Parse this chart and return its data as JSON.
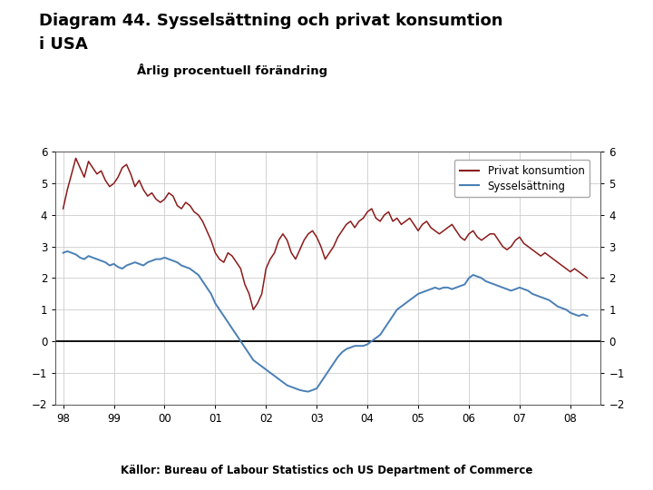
{
  "title_line1": "Diagram 44. Sysselsättning och privat konsumtion",
  "title_line2": "i USA",
  "subtitle": "Årlig procentuell förändring",
  "footer_bar_color": "#1c3f7a",
  "footer_text": "Källor: Bureau of Labour Statistics och US Department of Commerce",
  "legend_labels": [
    "Privat konsumtion",
    "Sysselsättning"
  ],
  "privat_color": "#8b1a1a",
  "syssel_color": "#4a7fb5",
  "background_color": "#ffffff",
  "ylim": [
    -2,
    6
  ],
  "yticks": [
    -2,
    -1,
    0,
    1,
    2,
    3,
    4,
    5,
    6
  ],
  "xtick_labels": [
    "98",
    "99",
    "00",
    "01",
    "02",
    "03",
    "04",
    "05",
    "06",
    "07",
    "08"
  ],
  "privat_x": [
    1998.0,
    1998.083,
    1998.167,
    1998.25,
    1998.333,
    1998.417,
    1998.5,
    1998.583,
    1998.667,
    1998.75,
    1998.833,
    1998.917,
    1999.0,
    1999.083,
    1999.167,
    1999.25,
    1999.333,
    1999.417,
    1999.5,
    1999.583,
    1999.667,
    1999.75,
    1999.833,
    1999.917,
    2000.0,
    2000.083,
    2000.167,
    2000.25,
    2000.333,
    2000.417,
    2000.5,
    2000.583,
    2000.667,
    2000.75,
    2000.833,
    2000.917,
    2001.0,
    2001.083,
    2001.167,
    2001.25,
    2001.333,
    2001.417,
    2001.5,
    2001.583,
    2001.667,
    2001.75,
    2001.833,
    2001.917,
    2002.0,
    2002.083,
    2002.167,
    2002.25,
    2002.333,
    2002.417,
    2002.5,
    2002.583,
    2002.667,
    2002.75,
    2002.833,
    2002.917,
    2003.0,
    2003.083,
    2003.167,
    2003.25,
    2003.333,
    2003.417,
    2003.5,
    2003.583,
    2003.667,
    2003.75,
    2003.833,
    2003.917,
    2004.0,
    2004.083,
    2004.167,
    2004.25,
    2004.333,
    2004.417,
    2004.5,
    2004.583,
    2004.667,
    2004.75,
    2004.833,
    2004.917,
    2005.0,
    2005.083,
    2005.167,
    2005.25,
    2005.333,
    2005.417,
    2005.5,
    2005.583,
    2005.667,
    2005.75,
    2005.833,
    2005.917,
    2006.0,
    2006.083,
    2006.167,
    2006.25,
    2006.333,
    2006.417,
    2006.5,
    2006.583,
    2006.667,
    2006.75,
    2006.833,
    2006.917,
    2007.0,
    2007.083,
    2007.167,
    2007.25,
    2007.333,
    2007.417,
    2007.5,
    2007.583,
    2007.667,
    2007.75,
    2007.833,
    2007.917,
    2008.0,
    2008.083,
    2008.167,
    2008.25,
    2008.333
  ],
  "privat_y": [
    4.2,
    4.8,
    5.3,
    5.8,
    5.5,
    5.2,
    5.7,
    5.5,
    5.3,
    5.4,
    5.1,
    4.9,
    5.0,
    5.2,
    5.5,
    5.6,
    5.3,
    4.9,
    5.1,
    4.8,
    4.6,
    4.7,
    4.5,
    4.4,
    4.5,
    4.7,
    4.6,
    4.3,
    4.2,
    4.4,
    4.3,
    4.1,
    4.0,
    3.8,
    3.5,
    3.2,
    2.8,
    2.6,
    2.5,
    2.8,
    2.7,
    2.5,
    2.3,
    1.8,
    1.5,
    1.0,
    1.2,
    1.5,
    2.3,
    2.6,
    2.8,
    3.2,
    3.4,
    3.2,
    2.8,
    2.6,
    2.9,
    3.2,
    3.4,
    3.5,
    3.3,
    3.0,
    2.6,
    2.8,
    3.0,
    3.3,
    3.5,
    3.7,
    3.8,
    3.6,
    3.8,
    3.9,
    4.1,
    4.2,
    3.9,
    3.8,
    4.0,
    4.1,
    3.8,
    3.9,
    3.7,
    3.8,
    3.9,
    3.7,
    3.5,
    3.7,
    3.8,
    3.6,
    3.5,
    3.4,
    3.5,
    3.6,
    3.7,
    3.5,
    3.3,
    3.2,
    3.4,
    3.5,
    3.3,
    3.2,
    3.3,
    3.4,
    3.4,
    3.2,
    3.0,
    2.9,
    3.0,
    3.2,
    3.3,
    3.1,
    3.0,
    2.9,
    2.8,
    2.7,
    2.8,
    2.7,
    2.6,
    2.5,
    2.4,
    2.3,
    2.2,
    2.3,
    2.2,
    2.1,
    2.0
  ],
  "syssel_x": [
    1998.0,
    1998.083,
    1998.167,
    1998.25,
    1998.333,
    1998.417,
    1998.5,
    1998.583,
    1998.667,
    1998.75,
    1998.833,
    1998.917,
    1999.0,
    1999.083,
    1999.167,
    1999.25,
    1999.333,
    1999.417,
    1999.5,
    1999.583,
    1999.667,
    1999.75,
    1999.833,
    1999.917,
    2000.0,
    2000.083,
    2000.167,
    2000.25,
    2000.333,
    2000.417,
    2000.5,
    2000.583,
    2000.667,
    2000.75,
    2000.833,
    2000.917,
    2001.0,
    2001.083,
    2001.167,
    2001.25,
    2001.333,
    2001.417,
    2001.5,
    2001.583,
    2001.667,
    2001.75,
    2001.833,
    2001.917,
    2002.0,
    2002.083,
    2002.167,
    2002.25,
    2002.333,
    2002.417,
    2002.5,
    2002.583,
    2002.667,
    2002.75,
    2002.833,
    2002.917,
    2003.0,
    2003.083,
    2003.167,
    2003.25,
    2003.333,
    2003.417,
    2003.5,
    2003.583,
    2003.667,
    2003.75,
    2003.833,
    2003.917,
    2004.0,
    2004.083,
    2004.167,
    2004.25,
    2004.333,
    2004.417,
    2004.5,
    2004.583,
    2004.667,
    2004.75,
    2004.833,
    2004.917,
    2005.0,
    2005.083,
    2005.167,
    2005.25,
    2005.333,
    2005.417,
    2005.5,
    2005.583,
    2005.667,
    2005.75,
    2005.833,
    2005.917,
    2006.0,
    2006.083,
    2006.167,
    2006.25,
    2006.333,
    2006.417,
    2006.5,
    2006.583,
    2006.667,
    2006.75,
    2006.833,
    2006.917,
    2007.0,
    2007.083,
    2007.167,
    2007.25,
    2007.333,
    2007.417,
    2007.5,
    2007.583,
    2007.667,
    2007.75,
    2007.833,
    2007.917,
    2008.0,
    2008.083,
    2008.167,
    2008.25,
    2008.333
  ],
  "syssel_y": [
    2.8,
    2.85,
    2.8,
    2.75,
    2.65,
    2.6,
    2.7,
    2.65,
    2.6,
    2.55,
    2.5,
    2.4,
    2.45,
    2.35,
    2.3,
    2.4,
    2.45,
    2.5,
    2.45,
    2.4,
    2.5,
    2.55,
    2.6,
    2.6,
    2.65,
    2.6,
    2.55,
    2.5,
    2.4,
    2.35,
    2.3,
    2.2,
    2.1,
    1.9,
    1.7,
    1.5,
    1.2,
    1.0,
    0.8,
    0.6,
    0.4,
    0.2,
    0.0,
    -0.2,
    -0.4,
    -0.6,
    -0.7,
    -0.8,
    -0.9,
    -1.0,
    -1.1,
    -1.2,
    -1.3,
    -1.4,
    -1.45,
    -1.5,
    -1.55,
    -1.58,
    -1.6,
    -1.55,
    -1.5,
    -1.3,
    -1.1,
    -0.9,
    -0.7,
    -0.5,
    -0.35,
    -0.25,
    -0.2,
    -0.15,
    -0.15,
    -0.15,
    -0.1,
    0.0,
    0.1,
    0.2,
    0.4,
    0.6,
    0.8,
    1.0,
    1.1,
    1.2,
    1.3,
    1.4,
    1.5,
    1.55,
    1.6,
    1.65,
    1.7,
    1.65,
    1.7,
    1.7,
    1.65,
    1.7,
    1.75,
    1.8,
    2.0,
    2.1,
    2.05,
    2.0,
    1.9,
    1.85,
    1.8,
    1.75,
    1.7,
    1.65,
    1.6,
    1.65,
    1.7,
    1.65,
    1.6,
    1.5,
    1.45,
    1.4,
    1.35,
    1.3,
    1.2,
    1.1,
    1.05,
    1.0,
    0.9,
    0.85,
    0.8,
    0.85,
    0.8
  ]
}
